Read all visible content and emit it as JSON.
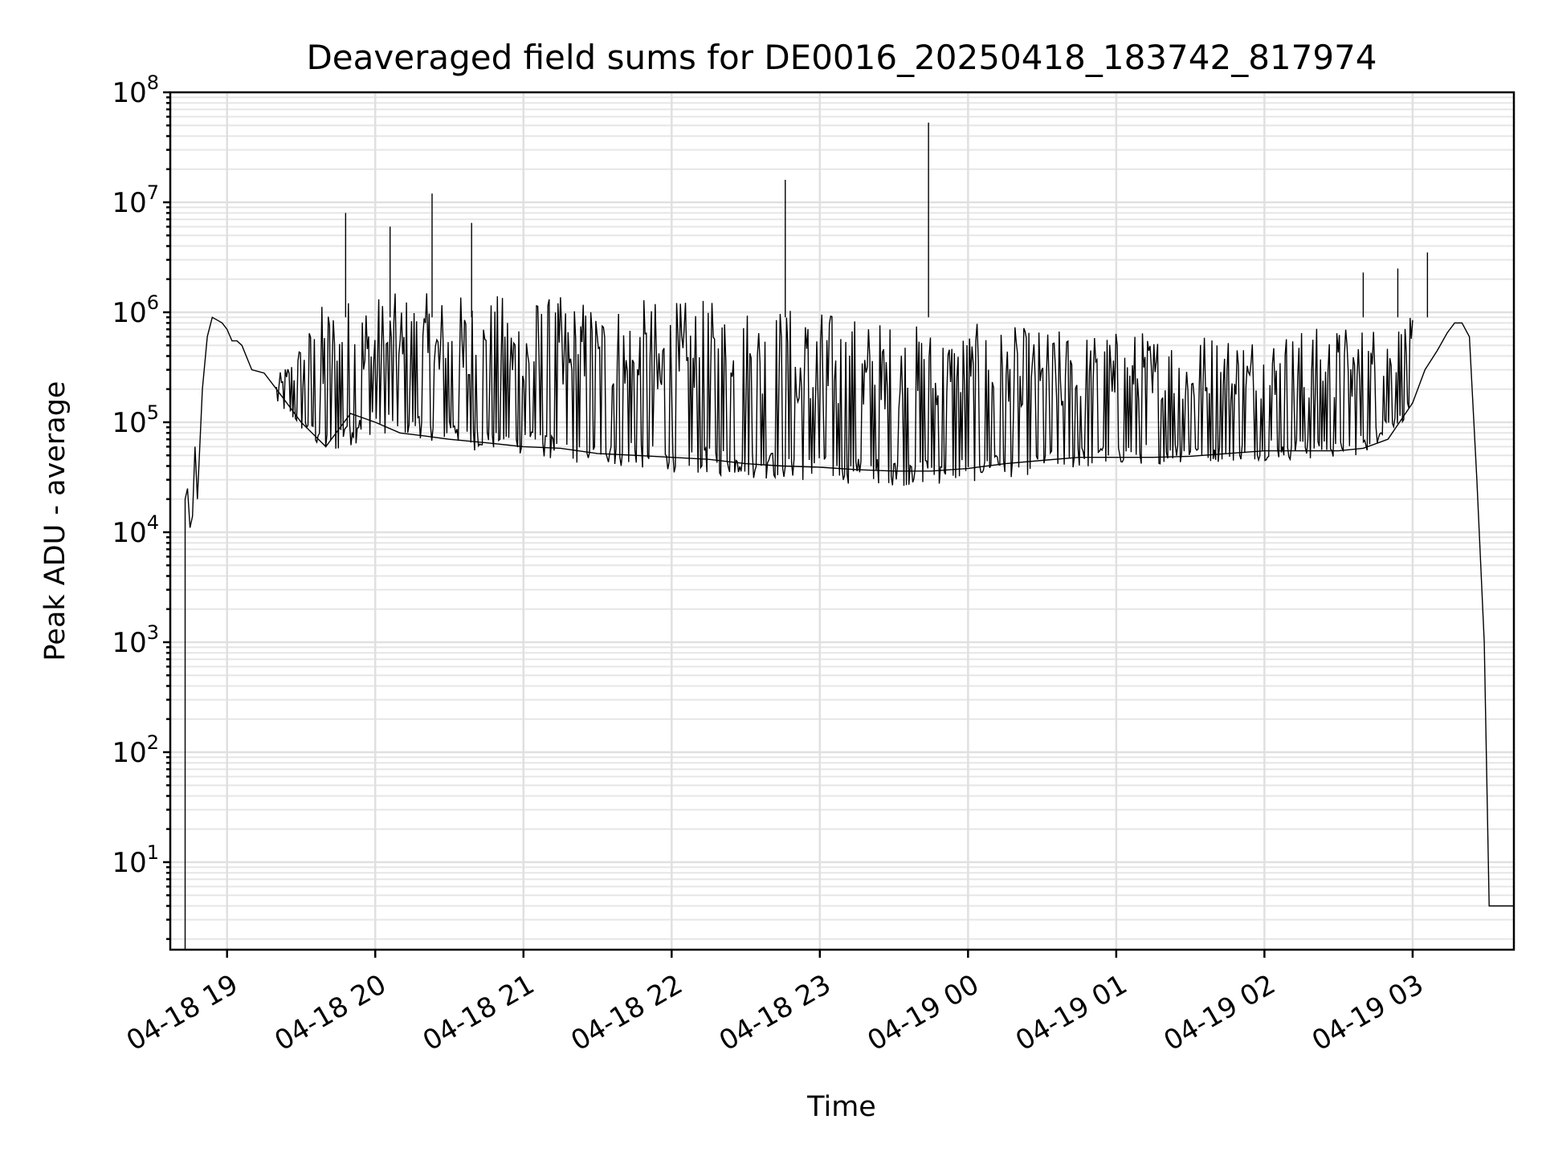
{
  "chart_data": {
    "type": "line",
    "title": "Deaveraged field sums for DE0016_20250418_183742_817974",
    "xlabel": "Time",
    "ylabel": "Peak ADU - average",
    "yscale": "log",
    "ylim": [
      1.6,
      100000000
    ],
    "xlim": [
      "2025-04-18 18:37",
      "2025-04-19 03:41"
    ],
    "x_ticks": [
      "04-18 19",
      "04-18 20",
      "04-18 21",
      "04-18 22",
      "04-18 23",
      "04-19 00",
      "04-19 01",
      "04-19 02",
      "04-19 03"
    ],
    "y_ticks": [
      {
        "base": "10",
        "exp": "1"
      },
      {
        "base": "10",
        "exp": "2"
      },
      {
        "base": "10",
        "exp": "3"
      },
      {
        "base": "10",
        "exp": "4"
      },
      {
        "base": "10",
        "exp": "5"
      },
      {
        "base": "10",
        "exp": "6"
      },
      {
        "base": "10",
        "exp": "7"
      },
      {
        "base": "10",
        "exp": "8"
      }
    ],
    "grid": true,
    "series": [
      {
        "color": "#000000",
        "x": [
          "2025-04-18 18:43",
          "2025-04-18 18:43",
          "2025-04-18 18:44",
          "2025-04-18 18:45",
          "2025-04-18 18:46",
          "2025-04-18 18:47",
          "2025-04-18 18:48",
          "2025-04-18 18:50",
          "2025-04-18 18:52",
          "2025-04-18 18:54",
          "2025-04-18 18:56",
          "2025-04-18 18:58",
          "2025-04-18 19:00",
          "2025-04-18 19:02",
          "2025-04-18 19:04",
          "2025-04-18 19:06",
          "2025-04-18 19:10",
          "2025-04-18 19:15",
          "2025-04-18 19:20",
          "2025-04-18 19:30",
          "2025-04-18 19:40",
          "2025-04-18 19:50",
          "2025-04-18 20:00",
          "2025-04-18 20:10",
          "2025-04-18 20:20",
          "2025-04-18 20:30",
          "2025-04-18 20:45",
          "2025-04-18 21:00",
          "2025-04-18 21:15",
          "2025-04-18 21:30",
          "2025-04-18 21:45",
          "2025-04-18 22:00",
          "2025-04-18 22:15",
          "2025-04-18 22:30",
          "2025-04-18 22:45",
          "2025-04-18 23:00",
          "2025-04-18 23:15",
          "2025-04-18 23:30",
          "2025-04-18 23:45",
          "2025-04-19 00:00",
          "2025-04-19 00:15",
          "2025-04-19 00:30",
          "2025-04-19 00:45",
          "2025-04-19 01:00",
          "2025-04-19 01:15",
          "2025-04-19 01:30",
          "2025-04-19 01:45",
          "2025-04-19 02:00",
          "2025-04-19 02:15",
          "2025-04-19 02:30",
          "2025-04-19 02:40",
          "2025-04-19 02:50",
          "2025-04-19 03:00",
          "2025-04-19 03:05",
          "2025-04-19 03:10",
          "2025-04-19 03:14",
          "2025-04-19 03:17",
          "2025-04-19 03:20",
          "2025-04-19 03:23",
          "2025-04-19 03:26",
          "2025-04-19 03:29",
          "2025-04-19 03:31",
          "2025-04-19 03:41"
        ],
        "y": [
          1.6,
          20000,
          25000,
          11000,
          14000,
          60000,
          20000,
          200000,
          600000,
          900000,
          850000,
          800000,
          700000,
          550000,
          550000,
          500000,
          300000,
          280000,
          200000,
          100000,
          60000,
          120000,
          100000,
          80000,
          75000,
          70000,
          65000,
          60000,
          58000,
          52000,
          50000,
          48000,
          46000,
          42000,
          40000,
          39000,
          37000,
          36000,
          36000,
          38000,
          42000,
          45000,
          48000,
          48000,
          48000,
          49000,
          52000,
          55000,
          55000,
          55000,
          58000,
          70000,
          150000,
          300000,
          450000,
          650000,
          800000,
          800000,
          600000,
          30000,
          1000,
          4,
          4
        ]
      }
    ],
    "spikes": {
      "x": [
        "2025-04-18 19:48",
        "2025-04-18 20:06",
        "2025-04-18 20:23",
        "2025-04-18 20:39",
        "2025-04-18 22:46",
        "2025-04-18 23:44",
        "2025-04-19 02:40",
        "2025-04-19 02:54",
        "2025-04-19 03:06"
      ],
      "y": [
        8000000,
        6000000,
        12000000,
        6500000,
        16000000,
        53000000,
        2300000,
        2500000,
        3500000
      ]
    },
    "band": {
      "x": [
        "2025-04-18 19:20",
        "2025-04-18 19:40",
        "2025-04-18 20:00",
        "2025-04-18 20:20",
        "2025-04-18 20:40",
        "2025-04-18 21:00",
        "2025-04-18 21:20",
        "2025-04-18 21:40",
        "2025-04-18 22:00",
        "2025-04-18 22:20",
        "2025-04-18 22:40",
        "2025-04-18 23:00",
        "2025-04-18 23:20",
        "2025-04-18 23:40",
        "2025-04-19 00:00",
        "2025-04-19 00:20",
        "2025-04-19 00:40",
        "2025-04-19 01:00",
        "2025-04-19 01:20",
        "2025-04-19 01:40",
        "2025-04-19 02:00",
        "2025-04-19 02:20",
        "2025-04-19 02:40",
        "2025-04-19 03:00"
      ],
      "low": [
        150000,
        45000,
        80000,
        70000,
        55000,
        50000,
        42000,
        38000,
        35000,
        32000,
        30000,
        28000,
        27000,
        26000,
        28000,
        32000,
        36000,
        40000,
        42000,
        43000,
        45000,
        45000,
        50000,
        120000
      ],
      "high": [
        250000,
        1400000,
        1500000,
        1500000,
        1500000,
        1450000,
        1400000,
        1350000,
        1300000,
        1300000,
        1250000,
        1100000,
        900000,
        800000,
        800000,
        750000,
        700000,
        700000,
        700000,
        700000,
        700000,
        750000,
        800000,
        900000
      ]
    }
  }
}
